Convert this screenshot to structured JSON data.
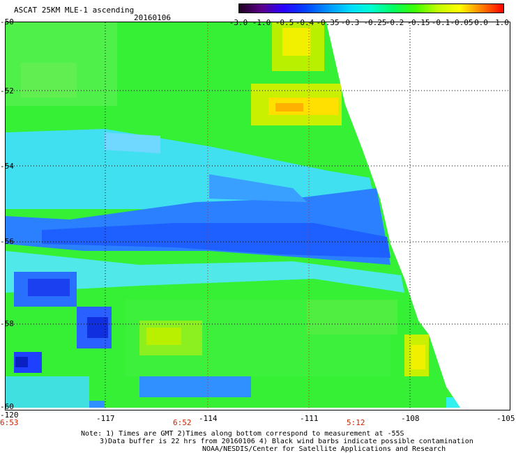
{
  "header": {
    "title": "ASCAT 25KM MLE-1 ascending",
    "date": "20160106"
  },
  "colorbar": {
    "labels": [
      "-3.0",
      "-1.0",
      "-0.5",
      "-0.4",
      "-0.35",
      "-0.3",
      "-0.25",
      "-0.2",
      "-0.15",
      "-0.1",
      "-0.05",
      "0.0",
      "1.0"
    ],
    "colors": [
      "#200020",
      "#5a0088",
      "#2a00ff",
      "#0040ff",
      "#0090ff",
      "#00d8ff",
      "#00ffd0",
      "#00ff60",
      "#40ff00",
      "#c0ff00",
      "#ffff00",
      "#ff8000",
      "#ff0000"
    ]
  },
  "map": {
    "lat_labels": [
      "-50",
      "-52",
      "-54",
      "-56",
      "-58",
      "-60"
    ],
    "lon_labels": [
      "-120",
      "-117",
      "-114",
      "-111",
      "-108",
      "-105"
    ],
    "time_labels": [
      "6:53",
      "6:52",
      "5:12"
    ]
  },
  "notes": {
    "line1": "Note: 1) Times are GMT 2)Times along bottom correspond to measurement at -55S",
    "line2": "3)Data buffer is 22 hrs from 20160106 4) Black wind barbs indicate possible contamination",
    "line3": "NOAA/NESDIS/Center for Satellite Applications and Research"
  }
}
